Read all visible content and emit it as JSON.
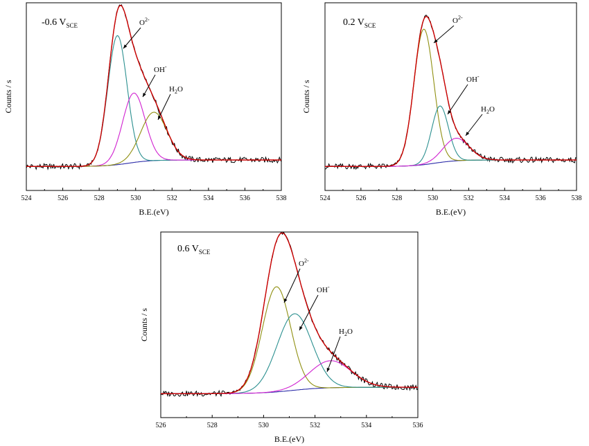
{
  "colors": {
    "raw": "#000000",
    "envelope": "#cc0000",
    "background": "#2a2aa8",
    "O2": "#2a8f8f",
    "OH": "#d020d0",
    "H2O": "#8f8f10"
  },
  "chart_data": [
    {
      "type": "line",
      "label_main": "-0.6 V",
      "label_sub": "SCE",
      "xlabel": "B.E.(eV)",
      "ylabel": "Counts / s",
      "xlim": [
        524,
        538
      ],
      "xticks": [
        524,
        526,
        528,
        530,
        532,
        534,
        536,
        538
      ],
      "grid": false,
      "series": [
        {
          "key": "O2",
          "center": 529.0,
          "height": 0.8,
          "fwhm": 1.25
        },
        {
          "key": "OH",
          "center": 529.9,
          "height": 0.43,
          "fwhm": 1.45
        },
        {
          "key": "H2O",
          "center": 531.0,
          "height": 0.3,
          "fwhm": 1.7
        }
      ],
      "annotations": [
        {
          "base": "O",
          "sup": "2-",
          "sub": "",
          "series": "O2"
        },
        {
          "base": "OH",
          "sup": "-",
          "sub": "",
          "series": "OH"
        },
        {
          "base": "H",
          "sup": "",
          "sub": "2",
          "tail": "O",
          "series": "H2O"
        }
      ]
    },
    {
      "type": "line",
      "label_main": "0.2 V",
      "label_sub": "SCE",
      "xlabel": "B.E.(eV)",
      "ylabel": "Counts / s",
      "xlim": [
        524,
        538
      ],
      "xticks": [
        524,
        526,
        528,
        530,
        532,
        534,
        536,
        538
      ],
      "grid": false,
      "series": [
        {
          "key": "H2O",
          "center": 529.5,
          "height": 0.84,
          "fwhm": 1.3
        },
        {
          "key": "O2",
          "center": 530.4,
          "height": 0.35,
          "fwhm": 1.1
        },
        {
          "key": "OH",
          "center": 531.3,
          "height": 0.14,
          "fwhm": 1.7
        }
      ],
      "annotations": [
        {
          "base": "O",
          "sup": "2-",
          "sub": "",
          "series": "H2O"
        },
        {
          "base": "OH",
          "sup": "-",
          "sub": "",
          "series": "O2"
        },
        {
          "base": "H",
          "sup": "",
          "sub": "2",
          "tail": "O",
          "series": "OH"
        }
      ]
    },
    {
      "type": "line",
      "label_main": "0.6 V",
      "label_sub": "SCE",
      "xlabel": "B.E.(eV)",
      "ylabel": "Counts / s",
      "xlim": [
        526,
        536
      ],
      "xticks": [
        526,
        528,
        530,
        532,
        534,
        536
      ],
      "grid": false,
      "series": [
        {
          "key": "H2O",
          "center": 530.5,
          "height": 0.66,
          "fwhm": 1.3
        },
        {
          "key": "O2",
          "center": 531.2,
          "height": 0.48,
          "fwhm": 1.6
        },
        {
          "key": "OH",
          "center": 532.6,
          "height": 0.17,
          "fwhm": 1.9
        }
      ],
      "annotations": [
        {
          "base": "O",
          "sup": "2-",
          "sub": "",
          "series": "H2O"
        },
        {
          "base": "OH",
          "sup": "-",
          "sub": "",
          "series": "O2"
        },
        {
          "base": "H",
          "sup": "",
          "sub": "2",
          "tail": "O",
          "series": "OH"
        }
      ]
    }
  ]
}
